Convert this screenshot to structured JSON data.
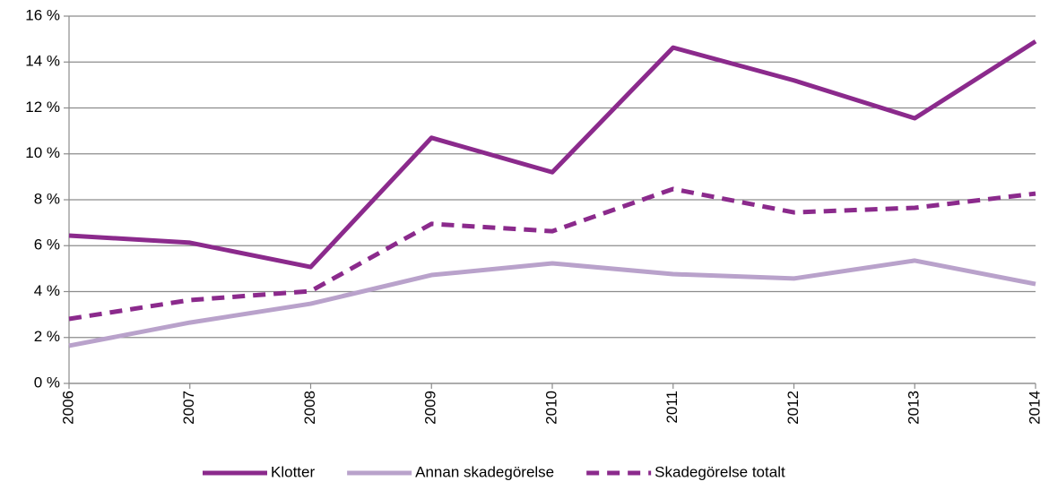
{
  "chart_data": {
    "type": "line",
    "categories": [
      "2006",
      "2007",
      "2008",
      "2009",
      "2010",
      "2011",
      "2012",
      "2013",
      "2014"
    ],
    "series": [
      {
        "name": "Klotter",
        "color": "#8b2a8c",
        "linestyle": "solid",
        "values": [
          6.44,
          6.13,
          5.07,
          10.7,
          9.2,
          14.63,
          13.2,
          11.55,
          14.9
        ]
      },
      {
        "name": "Annan skadegörelse",
        "color": "#b9a2cb",
        "linestyle": "solid",
        "values": [
          1.64,
          2.65,
          3.47,
          4.72,
          5.23,
          4.76,
          4.57,
          5.35,
          4.33
        ]
      },
      {
        "name": "Skadegörelse totalt",
        "color": "#8b2a8c",
        "linestyle": "dashed",
        "values": [
          2.81,
          3.63,
          4.02,
          6.95,
          6.63,
          8.47,
          7.45,
          7.65,
          8.27
        ]
      }
    ],
    "ylim": [
      0,
      16
    ],
    "yticks": [
      {
        "value": 0,
        "label": "0 %"
      },
      {
        "value": 2,
        "label": "2 %"
      },
      {
        "value": 4,
        "label": "4 %"
      },
      {
        "value": 6,
        "label": "6 %"
      },
      {
        "value": 8,
        "label": "8 %"
      },
      {
        "value": 10,
        "label": "10 %"
      },
      {
        "value": 12,
        "label": "12 %"
      },
      {
        "value": 14,
        "label": "14 %"
      },
      {
        "value": 16,
        "label": "16 %"
      }
    ],
    "grid": true,
    "legend": "bottom"
  }
}
